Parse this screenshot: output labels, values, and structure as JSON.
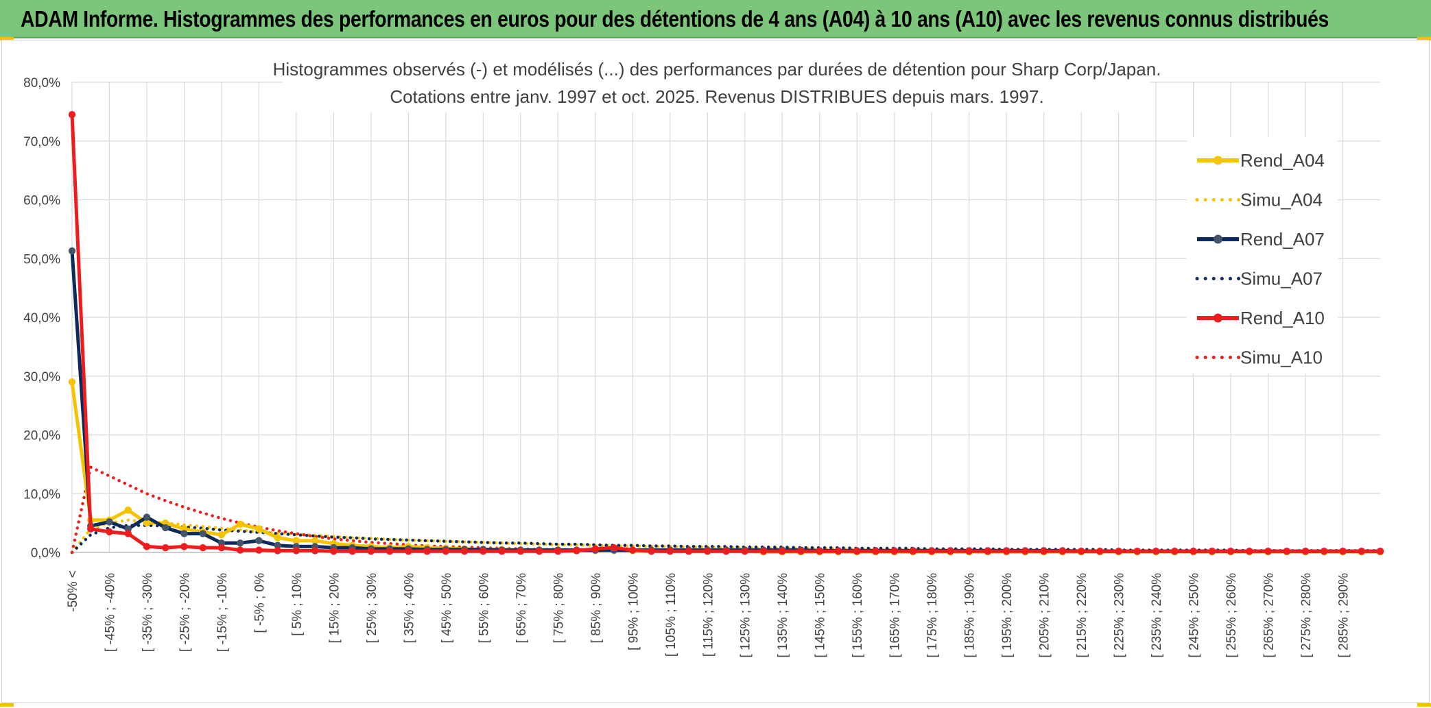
{
  "header": {
    "title": "ADAM Informe. Histogrammes des performances en euros pour des détentions de 4 ans (A04) à 10 ans (A10) avec les revenus connus distribués"
  },
  "chart_data": {
    "type": "line",
    "title": "Histogrammes observés (-) et modélisés (...) des performances par durées de détention pour Sharp Corp/Japan.",
    "subtitle": "Cotations entre janv. 1997 et oct. 2025. Revenus DISTRIBUES depuis mars. 1997.",
    "xlabel": "",
    "ylabel": "",
    "ylim": [
      0,
      0.8
    ],
    "y_ticks": [
      0,
      0.1,
      0.2,
      0.3,
      0.4,
      0.5,
      0.6,
      0.7,
      0.8
    ],
    "y_tick_labels": [
      "0,0%",
      "10,0%",
      "20,0%",
      "30,0%",
      "40,0%",
      "50,0%",
      "60,0%",
      "70,0%",
      "80,0%"
    ],
    "grid": true,
    "legend_position": "top-right",
    "x_tick_labels": [
      "-50% <",
      "[ -45% ; -40%",
      "[ -35% ; -30%",
      "[ -25% ; -20%",
      "[ -15% ; -10%",
      "[ -5% ; 0%",
      "[ 5% ; 10%",
      "[ 15% ; 20%",
      "[ 25% ; 30%",
      "[ 35% ; 40%",
      "[ 45% ; 50%",
      "[ 55% ; 60%",
      "[ 65% ; 70%",
      "[ 75% ; 80%",
      "[ 85% ; 90%",
      "[ 95% ; 100%",
      "[ 105% ; 110%",
      "[ 115% ; 120%",
      "[ 125% ; 130%",
      "[ 135% ; 140%",
      "[ 145% ; 150%",
      "[ 155% ; 160%",
      "[ 165% ; 170%",
      "[ 175% ; 180%",
      "[ 185% ; 190%",
      "[ 195% ; 200%",
      "[ 205% ; 210%",
      "[ 215% ; 220%",
      "[ 225% ; 230%",
      "[ 235% ; 240%",
      "[ 245% ; 250%",
      "[ 255% ; 260%",
      "[ 265% ; 270%",
      "[ 275% ; 280%",
      "[ 285% ; 290%"
    ],
    "series": [
      {
        "name": "Rend_A04",
        "style": "solid",
        "color": "#f5c400",
        "values": [
          0.29,
          0.055,
          0.055,
          0.072,
          0.05,
          0.05,
          0.04,
          0.035,
          0.03,
          0.048,
          0.04,
          0.025,
          0.02,
          0.02,
          0.015,
          0.012,
          0.01,
          0.008,
          0.01,
          0.008,
          0.007,
          0.006,
          0.005,
          0.005,
          0.004,
          0.004,
          0.004,
          0.003,
          0.003,
          0.003,
          0.003,
          0.002,
          0.002,
          0.002,
          0.002,
          0.002,
          0.002,
          0.001,
          0.001,
          0.001,
          0.001,
          0.001,
          0.001,
          0.001,
          0.001,
          0.001,
          0.001,
          0.001,
          0.001,
          0.001,
          0.001,
          0.001,
          0.001,
          0.001,
          0.001,
          0.001,
          0.001,
          0.001,
          0.001,
          0.001,
          0.001,
          0.001,
          0.001,
          0.001,
          0.001,
          0.001,
          0.001,
          0.001,
          0.001,
          0.001,
          0.001
        ]
      },
      {
        "name": "Simu_A04",
        "style": "dotted",
        "color": "#f5c400",
        "values": [
          0.0,
          0.04,
          0.05,
          0.055,
          0.052,
          0.05,
          0.047,
          0.044,
          0.041,
          0.038,
          0.035,
          0.033,
          0.031,
          0.029,
          0.027,
          0.025,
          0.024,
          0.022,
          0.021,
          0.02,
          0.019,
          0.018,
          0.017,
          0.016,
          0.015,
          0.014,
          0.013,
          0.013,
          0.012,
          0.011,
          0.011,
          0.01,
          0.01,
          0.009,
          0.009,
          0.008,
          0.008,
          0.007,
          0.007,
          0.007,
          0.006,
          0.006,
          0.006,
          0.005,
          0.005,
          0.005,
          0.005,
          0.004,
          0.004,
          0.004,
          0.004,
          0.004,
          0.003,
          0.003,
          0.003,
          0.003,
          0.003,
          0.003,
          0.003,
          0.002,
          0.002,
          0.002,
          0.002,
          0.002,
          0.002,
          0.002,
          0.002,
          0.002,
          0.002,
          0.002,
          0.002
        ]
      },
      {
        "name": "Rend_A07",
        "style": "solid",
        "color": "#0d2a5c",
        "values": [
          0.513,
          0.045,
          0.052,
          0.04,
          0.06,
          0.042,
          0.032,
          0.032,
          0.016,
          0.016,
          0.02,
          0.012,
          0.01,
          0.01,
          0.008,
          0.008,
          0.006,
          0.006,
          0.006,
          0.005,
          0.005,
          0.005,
          0.005,
          0.004,
          0.004,
          0.004,
          0.004,
          0.004,
          0.004,
          0.004,
          0.004,
          0.004,
          0.004,
          0.004,
          0.004,
          0.004,
          0.004,
          0.004,
          0.004,
          0.004,
          0.003,
          0.003,
          0.003,
          0.003,
          0.003,
          0.003,
          0.003,
          0.003,
          0.003,
          0.003,
          0.003,
          0.003,
          0.003,
          0.003,
          0.002,
          0.002,
          0.002,
          0.002,
          0.002,
          0.002,
          0.002,
          0.002,
          0.002,
          0.002,
          0.002,
          0.002,
          0.002,
          0.002,
          0.002,
          0.002,
          0.002
        ]
      },
      {
        "name": "Simu_A07",
        "style": "dotted",
        "color": "#0d2a5c",
        "values": [
          0.0,
          0.03,
          0.042,
          0.046,
          0.046,
          0.045,
          0.043,
          0.041,
          0.038,
          0.036,
          0.034,
          0.032,
          0.03,
          0.028,
          0.026,
          0.025,
          0.023,
          0.022,
          0.021,
          0.02,
          0.019,
          0.018,
          0.017,
          0.016,
          0.016,
          0.015,
          0.014,
          0.014,
          0.013,
          0.012,
          0.012,
          0.011,
          0.011,
          0.01,
          0.01,
          0.01,
          0.009,
          0.009,
          0.009,
          0.008,
          0.008,
          0.008,
          0.007,
          0.007,
          0.007,
          0.007,
          0.006,
          0.006,
          0.006,
          0.006,
          0.005,
          0.005,
          0.005,
          0.005,
          0.005,
          0.005,
          0.004,
          0.004,
          0.004,
          0.004,
          0.004,
          0.004,
          0.004,
          0.003,
          0.003,
          0.003,
          0.003,
          0.003,
          0.003,
          0.003,
          0.003
        ]
      },
      {
        "name": "Rend_A10",
        "style": "solid",
        "color": "#ee1c1c",
        "values": [
          0.745,
          0.04,
          0.035,
          0.032,
          0.01,
          0.008,
          0.01,
          0.008,
          0.008,
          0.004,
          0.004,
          0.003,
          0.003,
          0.003,
          0.002,
          0.002,
          0.002,
          0.002,
          0.002,
          0.002,
          0.002,
          0.002,
          0.002,
          0.002,
          0.002,
          0.002,
          0.002,
          0.003,
          0.006,
          0.008,
          0.004,
          0.002,
          0.002,
          0.002,
          0.002,
          0.002,
          0.002,
          0.002,
          0.002,
          0.002,
          0.002,
          0.002,
          0.002,
          0.002,
          0.002,
          0.002,
          0.002,
          0.002,
          0.002,
          0.002,
          0.002,
          0.002,
          0.002,
          0.002,
          0.002,
          0.002,
          0.002,
          0.002,
          0.002,
          0.002,
          0.002,
          0.002,
          0.002,
          0.002,
          0.002,
          0.002,
          0.002,
          0.002,
          0.002,
          0.002,
          0.002
        ]
      },
      {
        "name": "Simu_A10",
        "style": "dotted",
        "color": "#ee1c1c",
        "values": [
          0.0,
          0.145,
          0.13,
          0.115,
          0.1,
          0.088,
          0.077,
          0.067,
          0.058,
          0.05,
          0.043,
          0.037,
          0.032,
          0.027,
          0.023,
          0.02,
          0.017,
          0.015,
          0.013,
          0.011,
          0.01,
          0.009,
          0.008,
          0.007,
          0.006,
          0.005,
          0.005,
          0.004,
          0.004,
          0.003,
          0.003,
          0.003,
          0.002,
          0.002,
          0.002,
          0.002,
          0.002,
          0.002,
          0.001,
          0.001,
          0.001,
          0.001,
          0.001,
          0.001,
          0.001,
          0.001,
          0.001,
          0.001,
          0.001,
          0.001,
          0.001,
          0.001,
          0.001,
          0.001,
          0.001,
          0.001,
          0.001,
          0.001,
          0.001,
          0.001,
          0.001,
          0.001,
          0.001,
          0.001,
          0.001,
          0.001,
          0.001,
          0.001,
          0.001,
          0.001,
          0.001
        ]
      }
    ]
  }
}
